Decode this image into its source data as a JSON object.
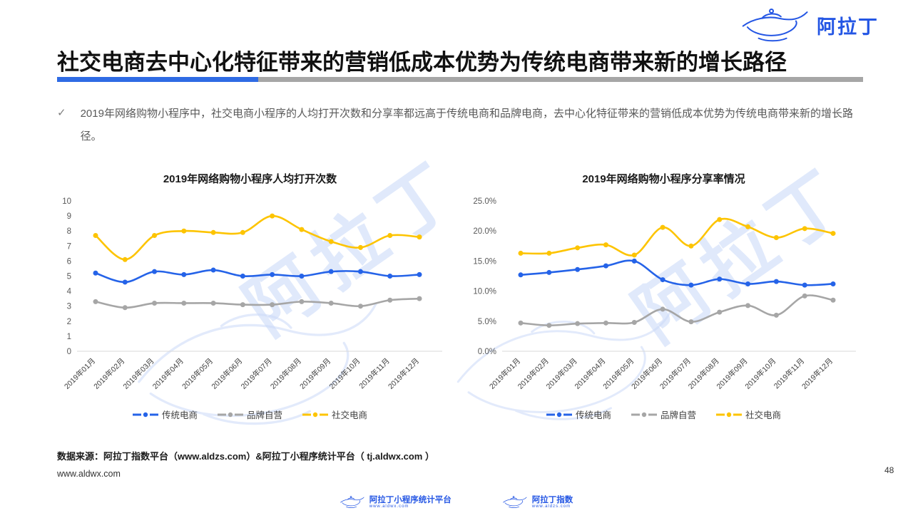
{
  "page": {
    "title": "社交电商去中心化特征带来的营销低成本优势为传统电商带来新的增长路径",
    "check_glyph": "✓",
    "bullet": "2019年网络购物小程序中，社交电商小程序的人均打开次数和分享率都远高于传统电商和品牌电商，去中心化特征带来的营销低成本优势为传统电商带来新的增长路径。",
    "source_line": "数据来源：阿拉丁指数平台（www.aldzs.com）&阿拉丁小程序统计平台（ tj.aldwx.com ）",
    "site": "www.aldwx.com",
    "page_number": "48"
  },
  "brand": {
    "logo_text": "阿拉丁",
    "watermark_text": "阿拉丁",
    "lamp_icon": "aladdin-lamp",
    "footer_logos": [
      {
        "label": "阿拉丁小程序统计平台",
        "url": "www.aldwx.com"
      },
      {
        "label": "阿拉丁指数",
        "url": "www.aldzs.com"
      }
    ]
  },
  "colors": {
    "accent_blue": "#2F6BE4",
    "logo_blue": "#2456E4",
    "bar_gray": "#A6A6A6",
    "series_blue": "#2563E8",
    "series_gray": "#A6A6A6",
    "series_yellow": "#FDC400",
    "axis_line": "#D9D9D9",
    "tick_text": "#595959",
    "xlabel_text": "#404040"
  },
  "chart_data": [
    {
      "type": "line",
      "title": "2019年网络购物小程序人均打开次数",
      "categories": [
        "2019年01月",
        "2019年02月",
        "2019年03月",
        "2019年04月",
        "2019年05月",
        "2019年06月",
        "2019年07月",
        "2019年08月",
        "2019年09月",
        "2019年10月",
        "2019年11月",
        "2019年12月"
      ],
      "series": [
        {
          "name": "传统电商",
          "color": "#2563E8",
          "values": [
            5.2,
            4.6,
            5.3,
            5.1,
            5.4,
            5.0,
            5.1,
            5.0,
            5.3,
            5.3,
            5.0,
            5.1
          ]
        },
        {
          "name": "品牌自营",
          "color": "#A6A6A6",
          "values": [
            3.3,
            2.9,
            3.2,
            3.2,
            3.2,
            3.1,
            3.1,
            3.3,
            3.2,
            3.0,
            3.4,
            3.5
          ]
        },
        {
          "name": "社交电商",
          "color": "#FDC400",
          "values": [
            7.7,
            6.1,
            7.7,
            8.0,
            7.9,
            7.9,
            9.0,
            8.1,
            7.3,
            6.9,
            7.7,
            7.6
          ]
        }
      ],
      "ylim": [
        0,
        10
      ],
      "ytick_step": 1,
      "yformat": "int",
      "grid": false,
      "legend_position": "bottom"
    },
    {
      "type": "line",
      "title": "2019年网络购物小程序分享率情况",
      "categories": [
        "2019年01月",
        "2019年02月",
        "2019年03月",
        "2019年04月",
        "2019年05月",
        "2019年06月",
        "2019年07月",
        "2019年08月",
        "2019年09月",
        "2019年10月",
        "2019年11月",
        "2019年12月"
      ],
      "series": [
        {
          "name": "传统电商",
          "color": "#2563E8",
          "values": [
            12.7,
            13.1,
            13.6,
            14.2,
            15.0,
            11.9,
            11.0,
            12.0,
            11.2,
            11.6,
            11.0,
            11.2
          ]
        },
        {
          "name": "品牌自营",
          "color": "#A6A6A6",
          "values": [
            4.7,
            4.3,
            4.6,
            4.7,
            4.8,
            7.0,
            4.9,
            6.5,
            7.6,
            6.0,
            9.2,
            8.5
          ]
        },
        {
          "name": "社交电商",
          "color": "#FDC400",
          "values": [
            16.3,
            16.3,
            17.2,
            17.7,
            16.0,
            20.6,
            17.5,
            21.9,
            20.7,
            18.9,
            20.4,
            19.6
          ]
        }
      ],
      "ylim": [
        0,
        25
      ],
      "ytick_step": 5,
      "yformat": "percent1",
      "grid": false,
      "legend_position": "bottom"
    }
  ]
}
